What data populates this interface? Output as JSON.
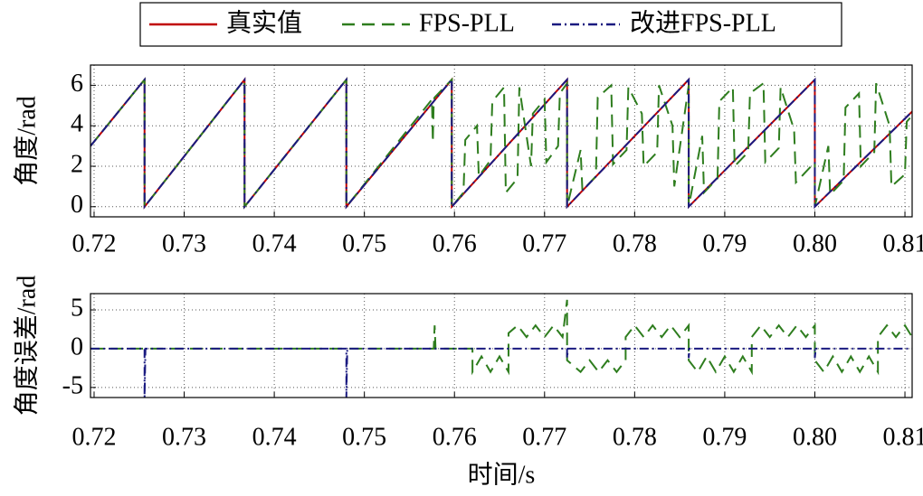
{
  "chart_data": [
    {
      "type": "line",
      "y_label": "角度/rad",
      "legend": "top-center",
      "grid": true,
      "xlim": [
        0.7196,
        0.8108
      ],
      "ylim": [
        -0.5,
        7
      ],
      "xticks": [
        0.72,
        0.73,
        0.74,
        0.75,
        0.76,
        0.77,
        0.78,
        0.79,
        {
          "value": 0.8,
          "label": "0.80"
        },
        0.81
      ],
      "yticks": [
        0,
        2,
        4,
        6
      ],
      "series": [
        {
          "name": "真实值",
          "color": "#c00000",
          "linestyle": "solid",
          "x": [
            0.7196,
            0.7256,
            0.7256,
            0.7367,
            0.7367,
            0.748,
            0.748,
            0.7597,
            0.7597,
            0.7725,
            0.7725,
            0.786,
            0.786,
            0.8,
            0.8,
            0.8108
          ],
          "values": [
            3.0,
            6.28,
            0,
            6.28,
            0,
            6.28,
            0,
            6.28,
            0,
            6.28,
            0,
            6.28,
            0,
            6.28,
            0,
            4.7
          ]
        },
        {
          "name": "FPS-PLL",
          "color": "#2e7d1e",
          "linestyle": "dashed",
          "x": [
            0.7196,
            0.7256,
            0.7256,
            0.7367,
            0.7367,
            0.748,
            0.748,
            0.7575,
            0.7576,
            0.7577,
            0.7578,
            0.7597,
            0.7597,
            0.761,
            0.7612,
            0.7625,
            0.7627,
            0.764,
            0.7642,
            0.7655,
            0.7657,
            0.767,
            0.7672,
            0.7685,
            0.7687,
            0.77,
            0.7702,
            0.7715,
            0.7717,
            0.7725,
            0.7725,
            0.774,
            0.7742,
            0.7757,
            0.7759,
            0.7774,
            0.7776,
            0.7791,
            0.7793,
            0.7808,
            0.781,
            0.7825,
            0.7827,
            0.7842,
            0.7844,
            0.786,
            0.786,
            0.7875,
            0.7877,
            0.7892,
            0.7894,
            0.7909,
            0.7911,
            0.7926,
            0.7928,
            0.7943,
            0.7945,
            0.796,
            0.7962,
            0.7977,
            0.7979,
            0.8,
            0.8,
            0.8015,
            0.8017,
            0.8032,
            0.8034,
            0.8049,
            0.8051,
            0.8066,
            0.8068,
            0.8083,
            0.8085,
            0.81,
            0.8102,
            0.8108
          ],
          "values": [
            3.0,
            6.28,
            0,
            6.28,
            0,
            6.28,
            0,
            5.3,
            3.2,
            5.3,
            5.4,
            6.28,
            0,
            0.7,
            3.3,
            4.0,
            1.5,
            2.3,
            5.2,
            5.9,
            0.7,
            1.4,
            5.9,
            2.0,
            4.6,
            5.3,
            2.2,
            3.0,
            5.6,
            6.1,
            0,
            2.8,
            0.8,
            1.5,
            5.4,
            6.0,
            2.1,
            2.8,
            5.9,
            4.6,
            2.0,
            2.7,
            6.0,
            4.0,
            1.0,
            6.0,
            0,
            3.5,
            0.7,
            1.4,
            5.2,
            5.9,
            2.0,
            2.7,
            5.6,
            6.1,
            2.2,
            2.9,
            5.9,
            3.8,
            1.2,
            2.2,
            0,
            3.0,
            0.6,
            1.3,
            4.9,
            5.6,
            2.0,
            2.7,
            6.1,
            4.0,
            1.0,
            1.6,
            4.2,
            4.5
          ]
        },
        {
          "name": "改进FPS-PLL",
          "color": "#1a1a80",
          "linestyle": "dashdot",
          "x": [
            0.7196,
            0.7256,
            0.7256,
            0.7367,
            0.7367,
            0.748,
            0.748,
            0.7597,
            0.7597,
            0.7725,
            0.7725,
            0.786,
            0.786,
            0.8,
            0.8,
            0.8108
          ],
          "values": [
            3.0,
            6.28,
            0,
            6.28,
            0,
            6.28,
            0,
            6.28,
            0,
            6.28,
            0,
            6.28,
            0,
            6.28,
            0,
            4.7
          ]
        }
      ]
    },
    {
      "type": "line",
      "y_label": "角度误差/rad",
      "x_label": "时间/s",
      "grid": true,
      "xlim": [
        0.7196,
        0.8108
      ],
      "ylim": [
        -6.3,
        7.1
      ],
      "xticks": [
        0.72,
        0.73,
        0.74,
        0.75,
        0.76,
        0.77,
        0.78,
        0.79,
        {
          "value": 0.8,
          "label": "0.80"
        },
        0.81
      ],
      "yticks": [
        -5,
        0,
        5
      ],
      "series": [
        {
          "color": "#2e7d1e",
          "linestyle": "dashed",
          "x": [
            0.7196,
            0.7577,
            0.7578,
            0.7579,
            0.762,
            0.762,
            0.763,
            0.764,
            0.765,
            0.766,
            0.766,
            0.767,
            0.768,
            0.769,
            0.77,
            0.771,
            0.772,
            0.7725,
            0.7725,
            0.774,
            0.775,
            0.776,
            0.777,
            0.778,
            0.779,
            0.779,
            0.78,
            0.781,
            0.782,
            0.783,
            0.784,
            0.785,
            0.786,
            0.786,
            0.787,
            0.788,
            0.789,
            0.79,
            0.791,
            0.792,
            0.793,
            0.793,
            0.794,
            0.795,
            0.796,
            0.797,
            0.798,
            0.799,
            0.8,
            0.8,
            0.801,
            0.802,
            0.803,
            0.804,
            0.805,
            0.806,
            0.807,
            0.807,
            0.808,
            0.809,
            0.81,
            0.8108
          ],
          "values": [
            0,
            0,
            3,
            0,
            0,
            -3,
            -1,
            -3,
            -1,
            -3,
            2,
            3,
            1.5,
            3,
            1.5,
            3,
            1.5,
            6.3,
            -1.5,
            -3,
            -1.5,
            -3,
            -1.5,
            -3,
            -1.5,
            1.5,
            3,
            1.5,
            3,
            1.5,
            3,
            1.5,
            3,
            -1.5,
            -3,
            -1,
            -3,
            -1,
            -3,
            -1,
            -3,
            1.5,
            3,
            1.5,
            3,
            1.5,
            3,
            1.5,
            3,
            -1.5,
            -3,
            -1,
            -3,
            -1,
            -3,
            -1,
            -3,
            1.5,
            3,
            1.5,
            3,
            1.5
          ]
        },
        {
          "color": "#1a1a80",
          "linestyle": "dashdot",
          "x": [
            0.7196,
            0.7256,
            0.7256,
            0.7257,
            0.748,
            0.748,
            0.7481,
            0.7725,
            0.7725,
            0.7726,
            0.786,
            0.786,
            0.7861,
            0.8,
            0.8,
            0.8001,
            0.8108
          ],
          "values": [
            0,
            0,
            -6.28,
            0,
            0,
            -6.28,
            0,
            0,
            -1.2,
            0,
            0,
            -1.2,
            0,
            0,
            -1.2,
            0,
            0
          ]
        }
      ]
    }
  ]
}
